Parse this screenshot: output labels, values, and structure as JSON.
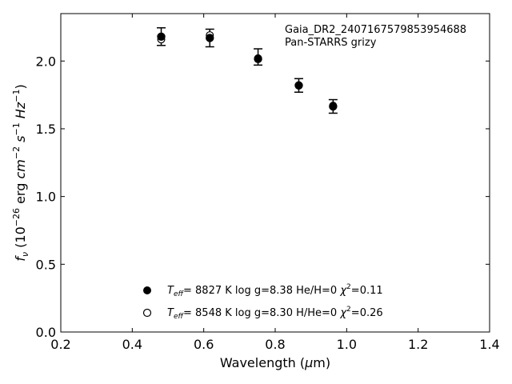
{
  "chart_data": {
    "type": "scatter",
    "title": "",
    "xlabel": {
      "main": "Wavelength (",
      "sym": "μ",
      "rest": "m)"
    },
    "ylabel": {
      "f": "f",
      "nu": "ν",
      "pre": " (10",
      "exp1": "−26",
      "erg": " erg ",
      "cm": "cm",
      "exp2": "−2",
      "s": " s",
      "exp3": "−1",
      "hz": " Hz",
      "exp4": "−1",
      "close": ")"
    },
    "xlim": [
      0.2,
      1.4
    ],
    "ylim": [
      0.0,
      2.35
    ],
    "xticks": [
      0.2,
      0.4,
      0.6,
      0.8,
      1.0,
      1.2,
      1.4
    ],
    "xtick_labels": [
      "0.2",
      "0.4",
      "0.6",
      "0.8",
      "1.0",
      "1.2",
      "1.4"
    ],
    "yticks": [
      0.0,
      0.5,
      1.0,
      1.5,
      2.0
    ],
    "ytick_labels": [
      "0.0",
      "0.5",
      "1.0",
      "1.5",
      "2.0"
    ],
    "grid": false,
    "annotation": [
      "Gaia_DR2_2407167579853954688",
      "Pan-STARRS grizy"
    ],
    "observed": {
      "x": [
        0.481,
        0.617,
        0.752,
        0.866,
        0.962
      ],
      "y": [
        2.18,
        2.17,
        2.03,
        1.82,
        1.665
      ],
      "yerr": [
        0.065,
        0.065,
        0.06,
        0.05,
        0.05
      ]
    },
    "series": [
      {
        "marker": "filled",
        "x": [
          0.481,
          0.617,
          0.752,
          0.866,
          0.962
        ],
        "y": [
          2.18,
          2.17,
          2.015,
          1.82,
          1.665
        ],
        "legend": {
          "teff": "8827",
          "logg": "8.38",
          "comp": "He/H=0",
          "chi2": "0.11"
        }
      },
      {
        "marker": "open",
        "x": [
          0.481,
          0.617,
          0.752,
          0.866,
          0.962
        ],
        "y": [
          2.16,
          2.19,
          2.02,
          1.82,
          1.67
        ],
        "legend": {
          "teff": "8548",
          "logg": "8.30",
          "comp": "H/He=0",
          "chi2": "0.26"
        }
      }
    ],
    "legend_labels": {
      "T": "T",
      "eff": "eff",
      "eq": "=  ",
      "unit": " K  log g=",
      "chi": "χ",
      "sq": "2",
      "eq2": "="
    },
    "legend_position": "lower-center"
  }
}
